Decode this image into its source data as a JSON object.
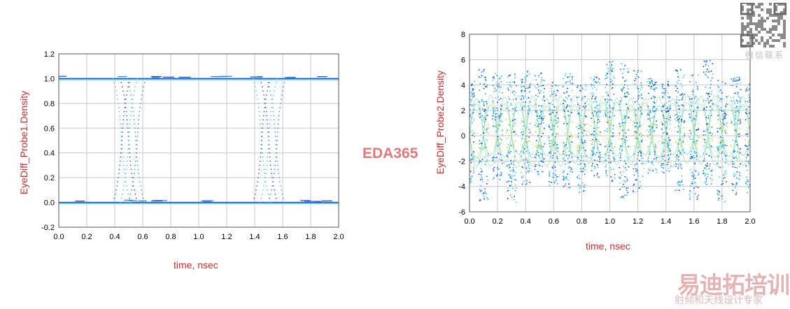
{
  "chart_data": [
    {
      "type": "scatter",
      "title": "",
      "xlabel": "time, nsec",
      "ylabel": "EyeDiff_Probe1.Density",
      "xlim": [
        0.0,
        2.0
      ],
      "ylim": [
        -0.2,
        1.2
      ],
      "xticks": [
        "0.0",
        "0.2",
        "0.4",
        "0.6",
        "0.8",
        "1.0",
        "1.2",
        "1.4",
        "1.6",
        "1.8",
        "2.0"
      ],
      "yticks": [
        "-0.2",
        "0.0",
        "0.2",
        "0.4",
        "0.6",
        "0.8",
        "1.0",
        "1.2"
      ],
      "grid": true,
      "levels": [
        1.0,
        0.0
      ],
      "crossings": [
        0.5,
        1.5
      ]
    },
    {
      "type": "scatter",
      "title": "",
      "xlabel": "time, nsec",
      "ylabel": "EyeDiff_Probe2.Density",
      "xlim": [
        0.0,
        2.0
      ],
      "ylim": [
        -6,
        8
      ],
      "xticks": [
        "0.0",
        "0.2",
        "0.4",
        "0.6",
        "0.8",
        "1.0",
        "1.2",
        "1.4",
        "1.6",
        "1.8",
        "2.0"
      ],
      "yticks": [
        "-6",
        "-4",
        "-2",
        "0",
        "2",
        "4",
        "6",
        "8"
      ],
      "grid": true,
      "crossings": [
        0.0,
        0.1,
        0.2,
        0.3,
        0.4,
        0.5,
        0.6,
        0.7,
        0.8,
        0.9,
        1.0,
        1.1,
        1.2,
        1.3,
        1.4,
        1.5,
        1.6,
        1.7,
        1.8,
        1.9,
        2.0
      ],
      "envelope": [
        -5.8,
        6.2
      ]
    }
  ],
  "watermark": {
    "center_text": "EDA365",
    "qr_caption": "微信联系",
    "brand_main": "易迪拓培训",
    "brand_sub": "射频和天线设计专家"
  }
}
